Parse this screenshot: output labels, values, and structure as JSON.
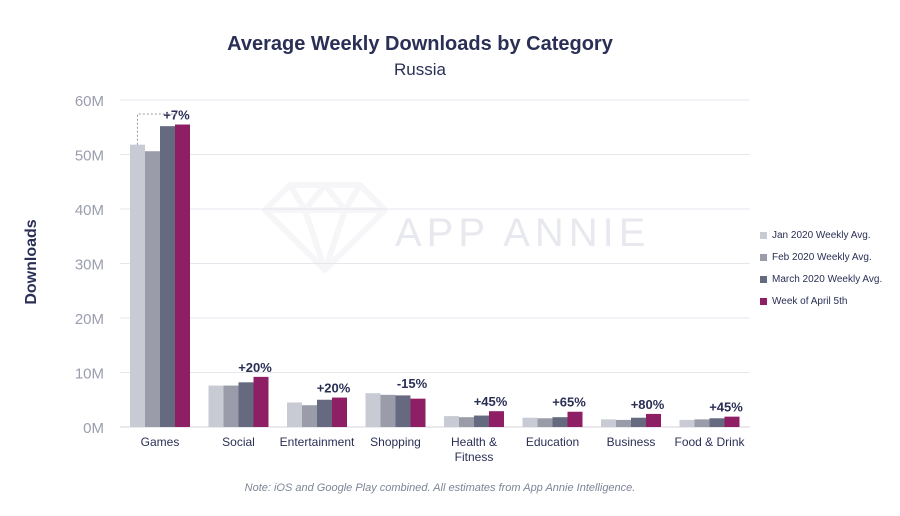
{
  "chart_data": {
    "type": "bar",
    "title": "Average Weekly Downloads by Category",
    "subtitle": "Russia",
    "ylabel": "Downloads",
    "ylim": [
      0,
      60
    ],
    "yticks": [
      {
        "value": 0,
        "label": "0M"
      },
      {
        "value": 10,
        "label": "10M"
      },
      {
        "value": 20,
        "label": "20M"
      },
      {
        "value": 30,
        "label": "30M"
      },
      {
        "value": 40,
        "label": "40M"
      },
      {
        "value": 50,
        "label": "50M"
      },
      {
        "value": 60,
        "label": "60M"
      }
    ],
    "categories": [
      "Games",
      "Social",
      "Entertainment",
      "Shopping",
      "Health & Fitness",
      "Education",
      "Business",
      "Food & Drink"
    ],
    "category_lines": [
      [
        "Games"
      ],
      [
        "Social"
      ],
      [
        "Entertainment"
      ],
      [
        "Shopping"
      ],
      [
        "Health &",
        "Fitness"
      ],
      [
        "Education"
      ],
      [
        "Business"
      ],
      [
        "Food & Drink"
      ]
    ],
    "series": [
      {
        "name": "Jan 2020 Weekly Avg.",
        "color": "#c9cbd4",
        "values": [
          51.8,
          7.6,
          4.5,
          6.2,
          2.0,
          1.7,
          1.4,
          1.3
        ]
      },
      {
        "name": "Feb 2020 Weekly Avg.",
        "color": "#9a9ca9",
        "values": [
          50.6,
          7.6,
          4.0,
          5.9,
          1.8,
          1.6,
          1.3,
          1.4
        ]
      },
      {
        "name": "March 2020 Weekly Avg.",
        "color": "#666a80",
        "values": [
          55.2,
          8.2,
          5.0,
          5.8,
          2.1,
          1.8,
          1.7,
          1.6
        ]
      },
      {
        "name": "Week of April 5th",
        "color": "#8e1f64",
        "values": [
          55.5,
          9.2,
          5.4,
          5.2,
          2.9,
          2.8,
          2.4,
          1.9
        ]
      }
    ],
    "annotations": [
      "+7%",
      "+20%",
      "+20%",
      "-15%",
      "+45%",
      "+65%",
      "+80%",
      "+45%"
    ],
    "grid": true,
    "legend_position": "right",
    "watermark": "APP ANNIE"
  },
  "note": "Note: iOS and Google Play combined. All estimates from App Annie Intelligence."
}
